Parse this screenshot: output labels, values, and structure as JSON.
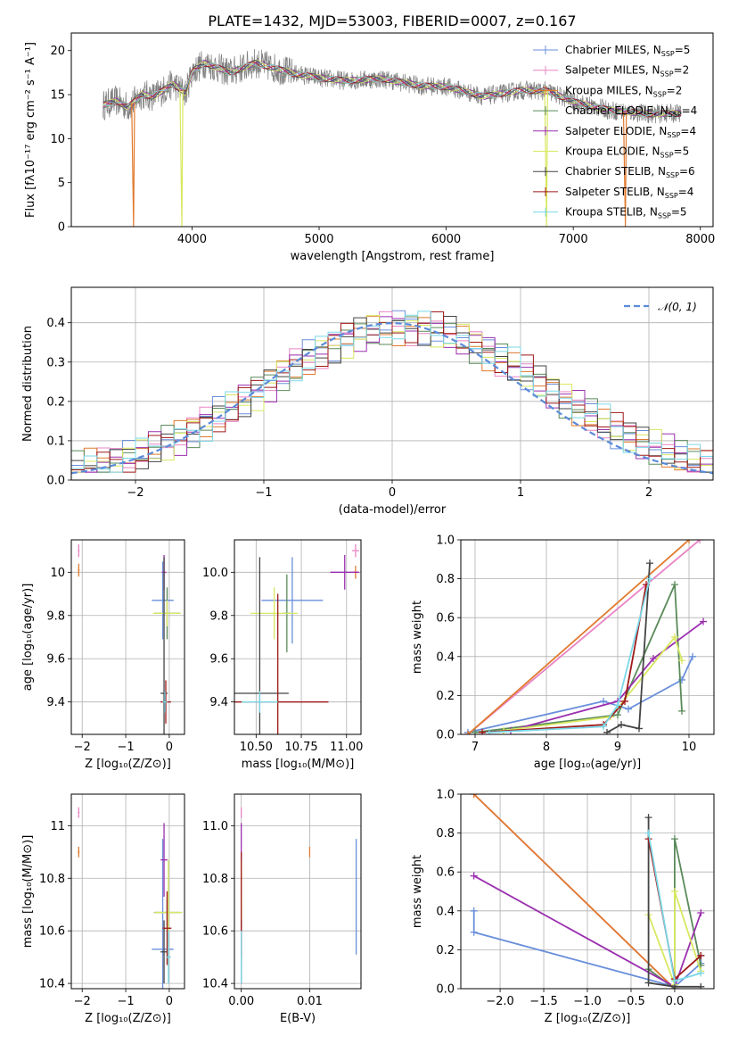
{
  "figure": {
    "title": "PLATE=1432, MJD=53003, FIBERID=0007, z=0.167"
  },
  "models": [
    {
      "name": "Chabrier MILES",
      "nssp": "5",
      "color": "#6a8fdb"
    },
    {
      "name": "Salpeter MILES",
      "nssp": "2",
      "color": "#e884c4"
    },
    {
      "name": "Kroupa MILES",
      "nssp": "2",
      "color": "#e07a2e"
    },
    {
      "name": "Chabrier ELODIE",
      "nssp": "4",
      "color": "#5a8a5a"
    },
    {
      "name": "Salpeter ELODIE",
      "nssp": "4",
      "color": "#9a2fae"
    },
    {
      "name": "Kroupa ELODIE",
      "nssp": "5",
      "color": "#d8e860"
    },
    {
      "name": "Chabrier STELIB",
      "nssp": "6",
      "color": "#444444"
    },
    {
      "name": "Salpeter STELIB",
      "nssp": "4",
      "color": "#a01818"
    },
    {
      "name": "Kroupa STELIB",
      "nssp": "5",
      "color": "#7ad8e8"
    }
  ],
  "chart_data": [
    {
      "type": "line",
      "id": "spectrum",
      "xlabel": "wavelength [Angstrom, rest frame]",
      "ylabel": "Flux [fλ10⁻¹⁷ erg cm⁻² s⁻¹ A⁻¹]",
      "xlim": [
        3050,
        8100
      ],
      "ylim": [
        0,
        22
      ],
      "xticks": [
        4000,
        5000,
        6000,
        7000,
        8000
      ],
      "yticks": [
        0,
        5,
        10,
        15,
        20
      ],
      "grid": false,
      "legend": "right",
      "data_color": "#808080",
      "continuum": [
        [
          3300,
          13.8
        ],
        [
          3400,
          14.3
        ],
        [
          3500,
          13.6
        ],
        [
          3600,
          15.0
        ],
        [
          3700,
          14.8
        ],
        [
          3850,
          16.2
        ],
        [
          3950,
          15.2
        ],
        [
          4000,
          17.6
        ],
        [
          4100,
          18.6
        ],
        [
          4300,
          17.5
        ],
        [
          4500,
          18.6
        ],
        [
          4800,
          17.4
        ],
        [
          5000,
          16.9
        ],
        [
          5200,
          16.6
        ],
        [
          5500,
          16.8
        ],
        [
          5800,
          16.0
        ],
        [
          6000,
          15.9
        ],
        [
          6300,
          14.8
        ],
        [
          6600,
          15.5
        ],
        [
          6800,
          15.4
        ],
        [
          7000,
          14.2
        ],
        [
          7300,
          13.2
        ],
        [
          7600,
          12.8
        ],
        [
          7850,
          12.9
        ]
      ],
      "spikes": [
        [
          3540,
          0,
          "Kroupa MILES"
        ],
        [
          3920,
          0,
          "Kroupa ELODIE"
        ],
        [
          6790,
          0,
          "Kroupa ELODIE"
        ],
        [
          7410,
          0,
          "Kroupa MILES"
        ]
      ]
    },
    {
      "type": "histogram",
      "id": "residuals",
      "xlabel": "(data-model)/error",
      "ylabel": "Normed distribution",
      "xlim": [
        -2.5,
        2.5
      ],
      "ylim": [
        0,
        0.49
      ],
      "xticks": [
        -2,
        -1,
        0,
        1,
        2
      ],
      "yticks": [
        0.0,
        0.1,
        0.2,
        0.3,
        0.4
      ],
      "grid": true,
      "legend": "top-right",
      "reference_label": "𝒩(0, 1)",
      "reference_color": "#5b8bd9",
      "bin_width": 0.1
    },
    {
      "type": "errorbar",
      "id": "age-vs-metallicity",
      "xlabel": "Z [log₁₀(Z/Z⊙)]",
      "ylabel": "age  [log₁₀(age/yr)]",
      "xlim": [
        -2.25,
        0.35
      ],
      "ylim": [
        9.25,
        10.15
      ],
      "xticks": [
        -2,
        -1,
        0
      ],
      "yticks": [
        9.4,
        9.6,
        9.8,
        10.0
      ],
      "grid": true,
      "points": [
        {
          "model": "Chabrier MILES",
          "x": -0.15,
          "xerr": 0.25,
          "y": 9.87,
          "yerr": 0.18
        },
        {
          "model": "Salpeter MILES",
          "x": -2.08,
          "xerr": 0.02,
          "y": 10.1,
          "yerr": 0.03
        },
        {
          "model": "Kroupa MILES",
          "x": -2.08,
          "xerr": 0.02,
          "y": 10.01,
          "yerr": 0.03
        },
        {
          "model": "Chabrier ELODIE",
          "x": -0.05,
          "xerr": 0.3,
          "y": 9.81,
          "yerr": 0.12
        },
        {
          "model": "Salpeter ELODIE",
          "x": -0.12,
          "xerr": 0.05,
          "y": 10.0,
          "yerr": 0.08
        },
        {
          "model": "Kroupa ELODIE",
          "x": -0.05,
          "xerr": 0.32,
          "y": 9.81,
          "yerr": 0.06
        },
        {
          "model": "Chabrier STELIB",
          "x": -0.12,
          "xerr": 0.08,
          "y": 9.44,
          "yerr": 0.63
        },
        {
          "model": "Salpeter STELIB",
          "x": -0.08,
          "xerr": 0.12,
          "y": 9.4,
          "yerr": 0.1
        },
        {
          "model": "Kroupa STELIB",
          "x": -0.1,
          "xerr": 0.05,
          "y": 9.4,
          "yerr": 0.05
        }
      ]
    },
    {
      "type": "errorbar",
      "id": "age-vs-mass",
      "xlabel": "mass [log₁₀(M/M⊙)]",
      "ylabel": "",
      "xlim": [
        10.38,
        11.08
      ],
      "ylim": [
        9.25,
        10.15
      ],
      "xticks": [
        10.5,
        10.75,
        11.0
      ],
      "ytick_labels": [
        "9.4",
        "9.6",
        "9.8",
        "10.0"
      ],
      "yticks": [
        9.4,
        9.6,
        9.8,
        10.0
      ],
      "xtick_labels": [
        "10.50",
        "10.75",
        "11.00"
      ],
      "grid": true,
      "points": [
        {
          "model": "Chabrier MILES",
          "x": 10.7,
          "xerr": 0.17,
          "y": 9.87,
          "yerr": 0.2
        },
        {
          "model": "Salpeter MILES",
          "x": 11.05,
          "xerr": 0.02,
          "y": 10.1,
          "yerr": 0.03
        },
        {
          "model": "Kroupa MILES",
          "x": 11.05,
          "xerr": 0.02,
          "y": 10.0,
          "yerr": 0.03
        },
        {
          "model": "Chabrier ELODIE",
          "x": 10.67,
          "xerr": 0.02,
          "y": 9.81,
          "yerr": 0.18
        },
        {
          "model": "Salpeter ELODIE",
          "x": 10.99,
          "xerr": 0.08,
          "y": 10.0,
          "yerr": 0.08
        },
        {
          "model": "Kroupa ELODIE",
          "x": 10.6,
          "xerr": 0.13,
          "y": 9.81,
          "yerr": 0.12
        },
        {
          "model": "Chabrier STELIB",
          "x": 10.52,
          "xerr": 0.16,
          "y": 9.44,
          "yerr": 0.63
        },
        {
          "model": "Salpeter STELIB",
          "x": 10.62,
          "xerr": 0.28,
          "y": 9.4,
          "yerr": 0.5
        },
        {
          "model": "Kroupa STELIB",
          "x": 10.52,
          "xerr": 0.1,
          "y": 9.4,
          "yerr": 0.05
        }
      ]
    },
    {
      "type": "line",
      "id": "mass-weight-vs-age",
      "xlabel": "age  [log₁₀(age/yr)]",
      "ylabel": "mass weight",
      "xlim": [
        6.8,
        10.35
      ],
      "ylim": [
        0,
        1
      ],
      "xticks": [
        7,
        8,
        9,
        10
      ],
      "yticks": [
        0.0,
        0.2,
        0.4,
        0.6,
        0.8,
        1.0
      ],
      "grid": true,
      "series": [
        {
          "model": "Chabrier MILES",
          "x": [
            6.9,
            8.8,
            9.15,
            9.9,
            10.05
          ],
          "y": [
            0.01,
            0.17,
            0.13,
            0.28,
            0.4
          ]
        },
        {
          "model": "Salpeter MILES",
          "x": [
            6.9,
            10.15
          ],
          "y": [
            0.0,
            1.0
          ]
        },
        {
          "model": "Kroupa MILES",
          "x": [
            6.9,
            10.0
          ],
          "y": [
            0.0,
            1.0
          ]
        },
        {
          "model": "Chabrier ELODIE",
          "x": [
            7.0,
            9.0,
            9.8,
            9.9
          ],
          "y": [
            0.01,
            0.1,
            0.77,
            0.12
          ]
        },
        {
          "model": "Salpeter ELODIE",
          "x": [
            7.5,
            9.0,
            9.5,
            10.2
          ],
          "y": [
            0.02,
            0.17,
            0.39,
            0.58
          ]
        },
        {
          "model": "Kroupa ELODIE",
          "x": [
            7.4,
            8.9,
            9.8,
            9.9
          ],
          "y": [
            0.02,
            0.09,
            0.5,
            0.38
          ]
        },
        {
          "model": "Chabrier STELIB",
          "x": [
            8.85,
            9.05,
            9.3,
            9.45
          ],
          "y": [
            0.01,
            0.05,
            0.03,
            0.88
          ]
        },
        {
          "model": "Salpeter STELIB",
          "x": [
            7.1,
            8.8,
            9.1,
            9.4
          ],
          "y": [
            0.01,
            0.05,
            0.17,
            0.77
          ]
        },
        {
          "model": "Kroupa STELIB",
          "x": [
            7.2,
            8.8,
            9.0,
            9.45
          ],
          "y": [
            0.01,
            0.04,
            0.15,
            0.8
          ]
        }
      ]
    },
    {
      "type": "errorbar",
      "id": "mass-vs-metallicity",
      "xlabel": "Z [log₁₀(Z/Z⊙)]",
      "ylabel": "mass [log₁₀(M/M⊙)]",
      "xlim": [
        -2.25,
        0.35
      ],
      "ylim": [
        10.38,
        11.12
      ],
      "xticks": [
        -2,
        -1,
        0
      ],
      "yticks": [
        10.4,
        10.6,
        10.8,
        11.0
      ],
      "grid": true,
      "points": [
        {
          "model": "Chabrier MILES",
          "x": -0.15,
          "xerr": 0.25,
          "y": 10.53,
          "yerr": 0.42
        },
        {
          "model": "Salpeter MILES",
          "x": -2.08,
          "xerr": 0.02,
          "y": 11.05,
          "yerr": 0.02
        },
        {
          "model": "Kroupa MILES",
          "x": -2.08,
          "xerr": 0.02,
          "y": 10.9,
          "yerr": 0.02
        },
        {
          "model": "Chabrier ELODIE",
          "x": -0.05,
          "xerr": 0.3,
          "y": 10.67,
          "yerr": 0.05
        },
        {
          "model": "Salpeter ELODIE",
          "x": -0.12,
          "xerr": 0.08,
          "y": 10.87,
          "yerr": 0.14
        },
        {
          "model": "Kroupa ELODIE",
          "x": -0.02,
          "xerr": 0.32,
          "y": 10.67,
          "yerr": 0.2
        },
        {
          "model": "Chabrier STELIB",
          "x": -0.12,
          "xerr": 0.08,
          "y": 10.52,
          "yerr": 0.12
        },
        {
          "model": "Salpeter STELIB",
          "x": -0.05,
          "xerr": 0.1,
          "y": 10.61,
          "yerr": 0.14
        },
        {
          "model": "Kroupa STELIB",
          "x": -0.02,
          "xerr": 0.06,
          "y": 10.5,
          "yerr": 0.1
        }
      ]
    },
    {
      "type": "errorbar",
      "id": "mass-vs-extinction",
      "xlabel": "E(B-V)",
      "ylabel": "",
      "xlim": [
        -0.001,
        0.0175
      ],
      "ylim": [
        10.38,
        11.12
      ],
      "xticks": [
        0.0,
        0.01
      ],
      "xtick_labels": [
        "0.00",
        "0.01"
      ],
      "yticks": [
        10.4,
        10.6,
        10.8,
        11.0
      ],
      "ytick_labels": [
        "10.4",
        "10.6",
        "10.8",
        "11.0"
      ],
      "grid": true,
      "points": [
        {
          "model": "Chabrier MILES",
          "x": 0.0168,
          "xerr": 0.0,
          "y": 10.73,
          "yerr": 0.22
        },
        {
          "model": "Salpeter MILES",
          "x": 0.0,
          "xerr": 0.0,
          "y": 11.05,
          "yerr": 0.02
        },
        {
          "model": "Kroupa MILES",
          "x": 0.01,
          "xerr": 0.0,
          "y": 10.9,
          "yerr": 0.02
        },
        {
          "model": "Chabrier ELODIE",
          "x": 0.0,
          "xerr": 0.0,
          "y": 10.67,
          "yerr": 0.05
        },
        {
          "model": "Salpeter ELODIE",
          "x": 0.0,
          "xerr": 0.0,
          "y": 10.87,
          "yerr": 0.14
        },
        {
          "model": "Kroupa ELODIE",
          "x": 0.0,
          "xerr": 0.0,
          "y": 10.67,
          "yerr": 0.2
        },
        {
          "model": "Chabrier STELIB",
          "x": 0.0,
          "xerr": 0.0,
          "y": 10.52,
          "yerr": 0.12
        },
        {
          "model": "Salpeter STELIB",
          "x": 0.0,
          "xerr": 0.0,
          "y": 10.7,
          "yerr": 0.2
        },
        {
          "model": "Kroupa STELIB",
          "x": 0.0,
          "xerr": 0.0,
          "y": 10.5,
          "yerr": 0.1
        }
      ]
    },
    {
      "type": "line",
      "id": "mass-weight-vs-metallicity",
      "xlabel": "Z [log₁₀(Z/Z⊙)]",
      "ylabel": "mass weight",
      "xlim": [
        -2.45,
        0.45
      ],
      "ylim": [
        0,
        1
      ],
      "xticks": [
        -2.0,
        -1.5,
        -1.0,
        -0.5,
        0.0
      ],
      "xtick_labels": [
        "−2.0",
        "−1.5",
        "−1.0",
        "−0.5",
        "0.0"
      ],
      "yticks": [
        0.0,
        0.2,
        0.4,
        0.6,
        0.8,
        1.0
      ],
      "grid": true,
      "series": [
        {
          "model": "Chabrier MILES",
          "x": [
            -2.3,
            -2.3,
            0.0,
            0.3,
            0.3
          ],
          "y": [
            0.4,
            0.29,
            0.01,
            0.13,
            0.17
          ]
        },
        {
          "model": "Salpeter MILES",
          "x": [
            -2.3,
            0.0
          ],
          "y": [
            1.0,
            0.0
          ]
        },
        {
          "model": "Kroupa MILES",
          "x": [
            -2.3,
            0.0
          ],
          "y": [
            1.0,
            0.0
          ]
        },
        {
          "model": "Chabrier ELODIE",
          "x": [
            -0.3,
            0.0,
            0.0,
            0.3
          ],
          "y": [
            0.1,
            0.0,
            0.77,
            0.12
          ]
        },
        {
          "model": "Salpeter ELODIE",
          "x": [
            -2.3,
            0.0,
            0.3
          ],
          "y": [
            0.58,
            0.01,
            0.39
          ]
        },
        {
          "model": "Kroupa ELODIE",
          "x": [
            -0.3,
            0.0,
            0.0,
            0.3
          ],
          "y": [
            0.38,
            0.02,
            0.5,
            0.09
          ]
        },
        {
          "model": "Chabrier STELIB",
          "x": [
            -0.3,
            -0.3,
            0.0,
            0.3
          ],
          "y": [
            0.88,
            0.03,
            0.01,
            0.01
          ]
        },
        {
          "model": "Salpeter STELIB",
          "x": [
            -0.3,
            0.0,
            0.3
          ],
          "y": [
            0.77,
            0.05,
            0.17
          ]
        },
        {
          "model": "Kroupa STELIB",
          "x": [
            -0.3,
            0.0,
            0.3
          ],
          "y": [
            0.8,
            0.04,
            0.08
          ]
        }
      ]
    }
  ]
}
